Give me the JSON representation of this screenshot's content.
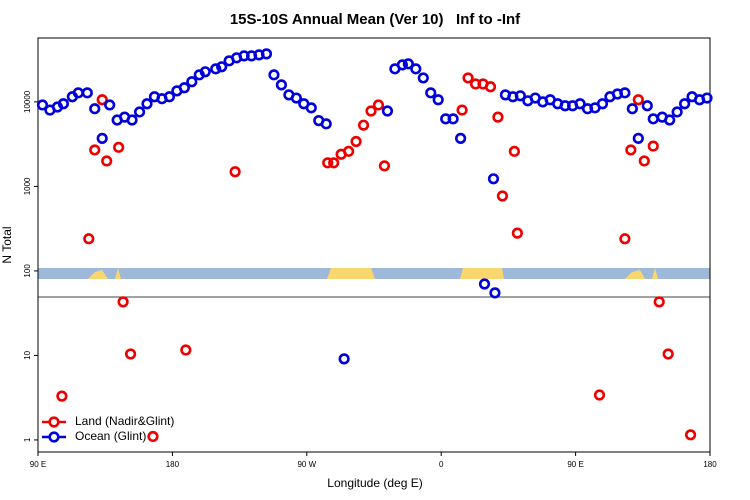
{
  "chart_data": {
    "type": "scatter",
    "title": "15S-10S Annual Mean (Ver 10)   Inf to -Inf",
    "x_label": "Longitude (deg E)",
    "y_label": "N Total",
    "log_y": true,
    "legend": "lower left",
    "xlim": [
      90,
      540
    ],
    "xticks": [
      {
        "value": 90,
        "label": "90 E"
      },
      180,
      {
        "value": 270,
        "label": "90 W"
      },
      {
        "value": 360,
        "label": "0"
      },
      {
        "value": 450,
        "label": "90 E"
      },
      {
        "value": 540,
        "label": "180"
      }
    ],
    "ylim": [
      0.72,
      57000
    ],
    "yticks": [
      1,
      10,
      100,
      1000,
      10000
    ],
    "series": [
      {
        "name": "Land (Nadir&Glint)",
        "color": "#ee0000",
        "x": [
          106,
          124,
          128,
          133,
          136,
          144,
          147,
          152,
          167,
          189,
          222,
          284,
          288,
          293,
          298,
          303,
          308,
          313,
          318,
          322,
          374,
          378,
          383,
          388,
          393,
          398,
          401,
          409,
          411,
          466,
          483,
          487,
          492,
          496,
          502,
          506,
          512,
          527
        ],
        "values": [
          3.3,
          240,
          2700,
          10600,
          2000,
          2900,
          43,
          10.4,
          1.1,
          11.6,
          1490,
          1900,
          1900,
          2400,
          2600,
          3400,
          5300,
          7800,
          9200,
          1750,
          8000,
          19200,
          16300,
          16300,
          15100,
          6600,
          770,
          2600,
          280,
          3.4,
          240,
          2700,
          10600,
          2000,
          3000,
          43,
          10.4,
          1.15
        ]
      },
      {
        "name": "Ocean (Glint)",
        "color": "#0000dd",
        "x": [
          93,
          98,
          103,
          107,
          113,
          117,
          123,
          128,
          133,
          138,
          143,
          148,
          153,
          158,
          163,
          168,
          173,
          178,
          183,
          188,
          193,
          198,
          202,
          209,
          213,
          218,
          223,
          228,
          233,
          238,
          243,
          248,
          253,
          258,
          263,
          268,
          273,
          278,
          283,
          295,
          324,
          329,
          334,
          338,
          343,
          348,
          353,
          358,
          363,
          368,
          373,
          389,
          395,
          396,
          403,
          408,
          413,
          418,
          423,
          428,
          433,
          438,
          443,
          448,
          453,
          458,
          463,
          468,
          473,
          478,
          483,
          488,
          492,
          498,
          502,
          508,
          513,
          518,
          523,
          528,
          533,
          538
        ],
        "values": [
          9200,
          8000,
          8700,
          9500,
          11500,
          12800,
          12800,
          8300,
          3700,
          9200,
          6100,
          6600,
          6100,
          7600,
          9500,
          11500,
          10900,
          11500,
          13500,
          14700,
          17300,
          20900,
          22700,
          24600,
          26000,
          30600,
          33200,
          35000,
          35000,
          36000,
          37000,
          20900,
          15900,
          12100,
          11100,
          9500,
          8500,
          6000,
          5500,
          9.1,
          7800,
          24600,
          27400,
          28200,
          24600,
          19200,
          12800,
          10600,
          6300,
          6300,
          3700,
          70,
          1230,
          55,
          12100,
          11500,
          11800,
          10300,
          11100,
          10000,
          10600,
          9500,
          9000,
          9000,
          9500,
          8300,
          8500,
          9500,
          11500,
          12400,
          12800,
          8300,
          3700,
          9000,
          6300,
          6600,
          6100,
          7600,
          9500,
          11500,
          10600,
          11100
        ]
      }
    ]
  }
}
